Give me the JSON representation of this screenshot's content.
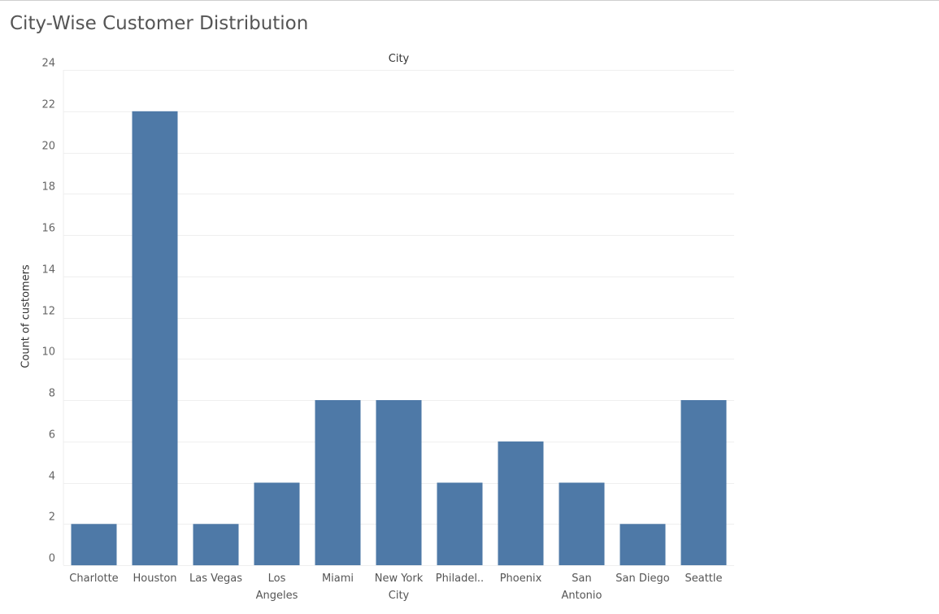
{
  "page": {
    "title": "City-Wise Customer Distribution"
  },
  "chart_data": {
    "type": "bar",
    "column_header": "City",
    "xlabel": "",
    "ylabel": "Count of customers",
    "categories": [
      "Charlotte",
      "Houston",
      "Las Vegas",
      "Los Angeles",
      "Miami",
      "New York City",
      "Philadel..",
      "Phoenix",
      "San Antonio",
      "San Diego",
      "Seattle"
    ],
    "category_label_lines": [
      [
        "Charlotte"
      ],
      [
        "Houston"
      ],
      [
        "Las Vegas"
      ],
      [
        "Los",
        "Angeles"
      ],
      [
        "Miami"
      ],
      [
        "New York",
        "City"
      ],
      [
        "Philadel.."
      ],
      [
        "Phoenix"
      ],
      [
        "San",
        "Antonio"
      ],
      [
        "San Diego"
      ],
      [
        "Seattle"
      ]
    ],
    "values": [
      2,
      22,
      2,
      4,
      8,
      8,
      4,
      6,
      4,
      2,
      8
    ],
    "ylim": [
      0,
      24
    ],
    "yticks": [
      0,
      2,
      4,
      6,
      8,
      10,
      12,
      14,
      16,
      18,
      20,
      22,
      24
    ],
    "grid": true,
    "bar_color": "#4e79a7"
  }
}
